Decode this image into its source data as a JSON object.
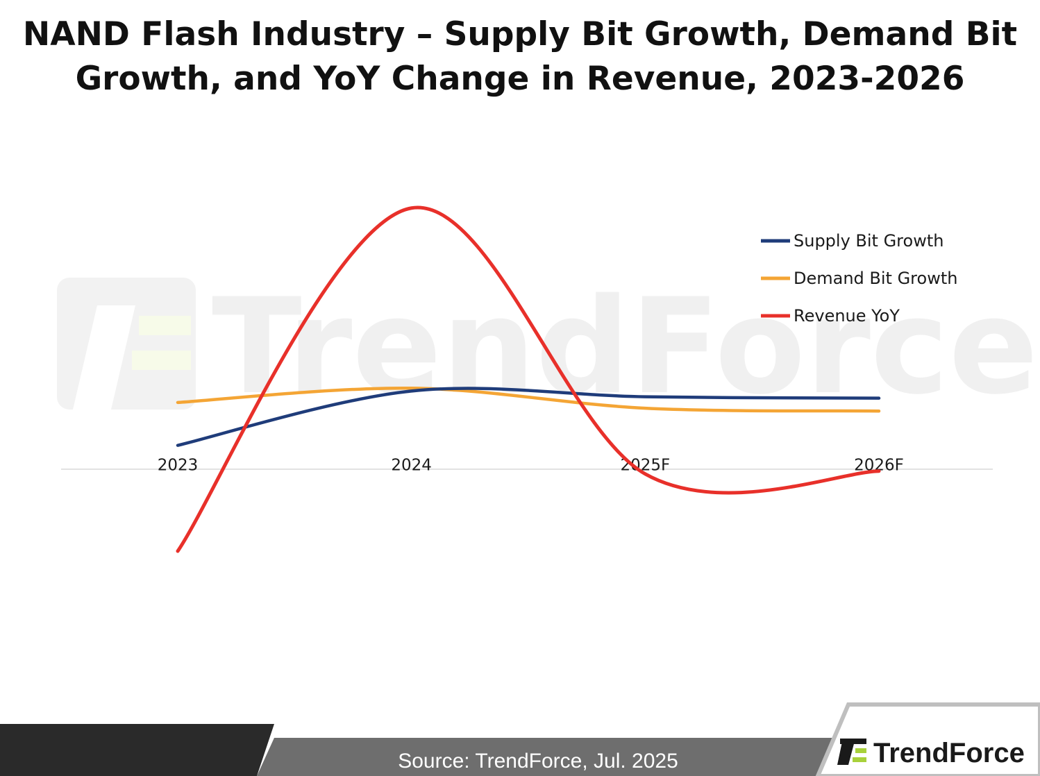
{
  "title_lines": [
    "NAND Flash Industry – Supply Bit Growth, Demand Bit",
    "Growth, and YoY Change in Revenue, 2023-2026"
  ],
  "footer": {
    "source": "Source: TrendForce, Jul. 2025",
    "brand": "TrendForce"
  },
  "watermark": "TrendForce",
  "icons": {
    "logo": "trendforce-logo-icon",
    "watermark_logo": "trendforce-watermark-logo-icon"
  },
  "colors": {
    "supply": "#1f3c7a",
    "demand": "#f4a535",
    "revenue": "#e8302a",
    "footer_dark": "#2a2a2a",
    "footer_gray": "#6e6e6e",
    "logo_green": "#a8d13b"
  },
  "chart_data": {
    "type": "line",
    "title": "NAND Flash Industry – Supply Bit Growth, Demand Bit Growth, and YoY Change in Revenue, 2023-2026",
    "categories": [
      "2023",
      "2024",
      "2025F",
      "2026F"
    ],
    "series": [
      {
        "name": "Supply Bit Growth",
        "color": "#1f3c7a",
        "values": [
          -3,
          16,
          14,
          13.5
        ]
      },
      {
        "name": "Demand Bit Growth",
        "color": "#f4a535",
        "values": [
          12,
          17,
          10,
          9
        ]
      },
      {
        "name": "Revenue YoY",
        "color": "#e8302a",
        "values": [
          -40,
          80,
          -13,
          -12
        ]
      }
    ],
    "ylim": [
      -90,
      120
    ],
    "y_axis_visible": false,
    "grid": false,
    "smooth": true,
    "legend_position": "top-right"
  }
}
